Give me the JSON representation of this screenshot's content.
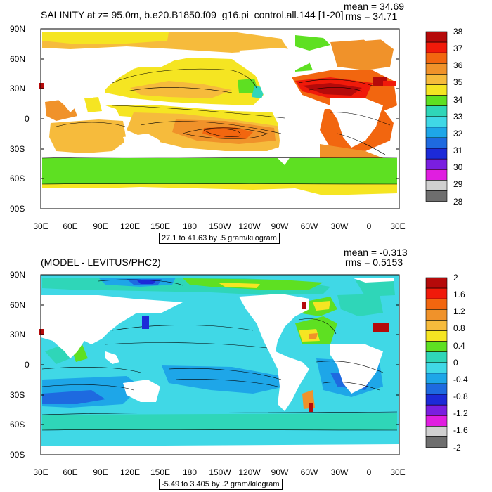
{
  "panels": [
    {
      "id": "top",
      "title": "SALINITY at z=  95.0m, b.e20.B1850.f09_g16.pi_control.all.144 [1-20]",
      "stat_mean": "mean = 34.69",
      "stat_rms": "rms = 34.71",
      "lat_labels": [
        "90N",
        "60N",
        "30N",
        "0",
        "30S",
        "60S",
        "90S"
      ],
      "lon_labels": [
        "30E",
        "60E",
        "90E",
        "120E",
        "150E",
        "180",
        "150W",
        "120W",
        "90W",
        "60W",
        "30W",
        "0",
        "30E"
      ],
      "range_text": "27.1 to 41.63 by .5 gram/kilogram",
      "colorbar": {
        "labels": [
          "38",
          "37",
          "36",
          "35",
          "34",
          "33",
          "32",
          "31",
          "30",
          "29",
          "28"
        ],
        "colors": [
          "#b50a0a",
          "#f01a0a",
          "#f2660f",
          "#f0922a",
          "#f6bb3c",
          "#f5e522",
          "#5ee022",
          "#2fd6b8",
          "#40d8e6",
          "#1ea6e8",
          "#1e6ae0",
          "#1c2ad8",
          "#7a1ee0",
          "#e01ee0",
          "#d0d0d0",
          "#6e6e6e"
        ]
      }
    },
    {
      "id": "bottom",
      "title": "(MODEL - LEVITUS/PHC2)",
      "stat_mean": "mean = -0.313",
      "stat_rms": "rms = 0.5153",
      "lat_labels": [
        "90N",
        "60N",
        "30N",
        "0",
        "30S",
        "60S",
        "90S"
      ],
      "lon_labels": [
        "30E",
        "60E",
        "90E",
        "120E",
        "150E",
        "180",
        "150W",
        "120W",
        "90W",
        "60W",
        "30W",
        "0",
        "30E"
      ],
      "range_text": "-5.49 to 3.405 by .2 gram/kilogram",
      "colorbar": {
        "labels": [
          "2",
          "1.6",
          "1.2",
          "0.8",
          "0.4",
          "0",
          "-0.4",
          "-0.8",
          "-1.2",
          "-1.6",
          "-2"
        ],
        "colors": [
          "#b50a0a",
          "#f01a0a",
          "#f2660f",
          "#f0922a",
          "#f6bb3c",
          "#f5e522",
          "#5ee022",
          "#2fd6b8",
          "#40d8e6",
          "#1ea6e8",
          "#1e6ae0",
          "#1c2ad8",
          "#7a1ee0",
          "#e01ee0",
          "#d0d0d0",
          "#6e6e6e"
        ]
      }
    }
  ]
}
